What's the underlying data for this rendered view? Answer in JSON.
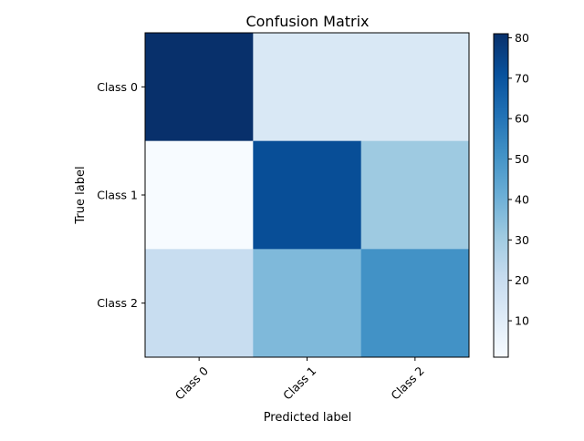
{
  "chart_data": {
    "type": "heatmap",
    "title": "Confusion Matrix",
    "xlabel": "Predicted label",
    "ylabel": "True label",
    "x_categories": [
      "Class 0",
      "Class 1",
      "Class 2"
    ],
    "y_categories": [
      "Class 0",
      "Class 1",
      "Class 2"
    ],
    "values": [
      [
        81,
        13,
        13
      ],
      [
        1,
        72,
        31
      ],
      [
        20,
        37,
        51
      ]
    ],
    "colormap": "Blues",
    "colorbar": {
      "min": 1,
      "max": 81,
      "ticks": [
        10,
        20,
        30,
        40,
        50,
        60,
        70,
        80
      ]
    },
    "x_tick_rotation_deg": 45,
    "grid": false
  }
}
